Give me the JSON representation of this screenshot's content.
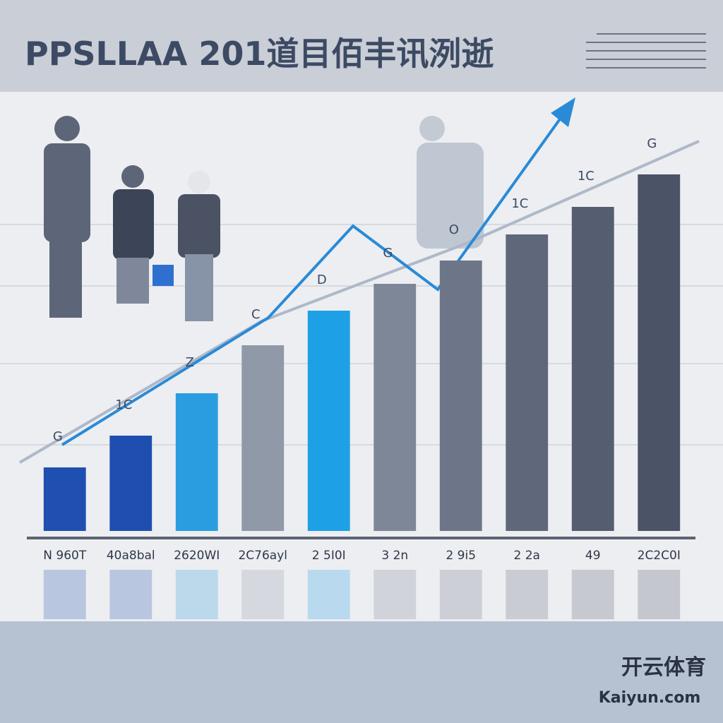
{
  "chart_data": {
    "type": "bar",
    "title": "PPSLLAA 201道目佰丰讯洌逝",
    "categories": [
      "N 960T",
      "40a8bal",
      "2620WI",
      "2C76ayl",
      "2 5I0I",
      "3 2n",
      "2 9i5",
      "2 2a",
      "49",
      "2C2C0I"
    ],
    "values": [
      90,
      135,
      195,
      263,
      312,
      350,
      383,
      420,
      459,
      505
    ],
    "colors": [
      "#1f4fb0",
      "#1e4eaf",
      "#2a9de0",
      "#8f99a8",
      "#1ea0e6",
      "#7d8797",
      "#6c7688",
      "#5f687a",
      "#555d70",
      "#4b5366"
    ],
    "ylim": [
      0,
      550
    ],
    "annotations": [
      "G",
      "1C",
      "Z",
      "C",
      "D",
      "G",
      "O",
      "1C",
      "1C",
      "G"
    ],
    "watermark": {
      "name": "开云体育",
      "url": "Kaiyun.com"
    }
  }
}
